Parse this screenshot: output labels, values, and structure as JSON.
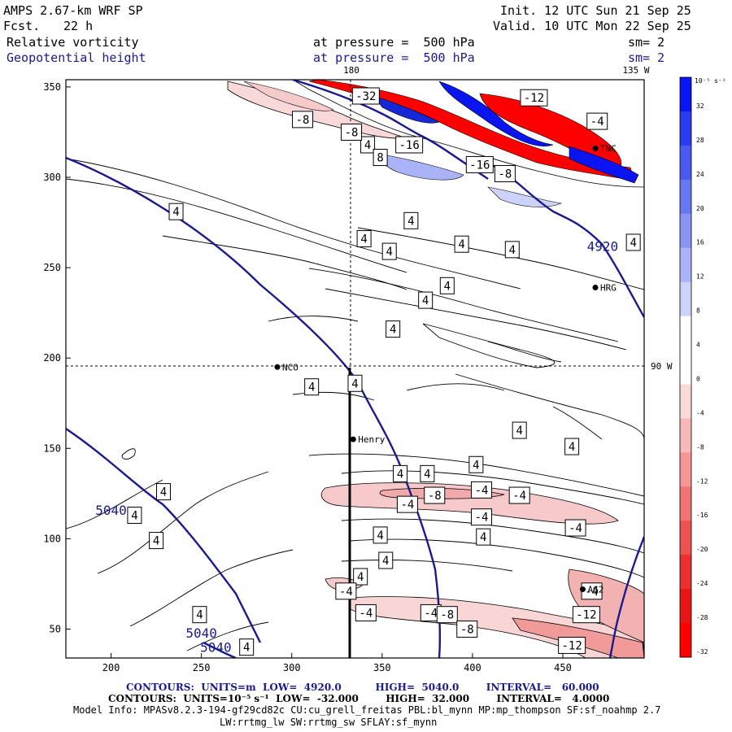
{
  "header": {
    "model": "AMPS 2.67-km WRF SP",
    "fcst_label": "Fcst.",
    "fcst_value": "22 h",
    "init": "Init. 12 UTC Sun 21 Sep 25",
    "valid": "Valid. 10 UTC Mon 22 Sep 25",
    "field1_name": "Relative vorticity",
    "field1_level": "at pressure =  500 hPa",
    "field1_sm": "sm= 2",
    "field2_name": "Geopotential height",
    "field2_level": "at pressure =  500 hPa",
    "field2_sm": "sm= 2"
  },
  "map": {
    "meridian_labels": {
      "m180": "180",
      "m135": "135 W",
      "m90": "90 W"
    },
    "x_ticks": [
      "200",
      "250",
      "300",
      "350",
      "400",
      "450"
    ],
    "y_ticks": [
      "50",
      "100",
      "150",
      "200",
      "250",
      "300",
      "350"
    ],
    "stations": [
      {
        "name": "NCO",
        "x": 292,
        "y": 195
      },
      {
        "name": "Henry",
        "x": 334,
        "y": 155
      },
      {
        "name": "HRG",
        "x": 468,
        "y": 239
      },
      {
        "name": "AG2",
        "x": 461,
        "y": 72
      },
      {
        "name": "TNC",
        "x": 468,
        "y": 316
      }
    ],
    "height_labels": [
      {
        "text": "4920",
        "x": 472,
        "y": 262
      },
      {
        "text": "5040",
        "x": 200,
        "y": 116
      },
      {
        "text": "5040",
        "x": 250,
        "y": 48
      },
      {
        "text": "5040",
        "x": 258,
        "y": 40
      }
    ],
    "vorticity_labels": [
      {
        "text": "-8",
        "x": 306,
        "y": 332
      },
      {
        "text": "-32",
        "x": 341,
        "y": 345
      },
      {
        "text": "4",
        "x": 342,
        "y": 318
      },
      {
        "text": "8",
        "x": 349,
        "y": 311
      },
      {
        "text": "-8",
        "x": 333,
        "y": 325
      },
      {
        "text": "-12",
        "x": 434,
        "y": 344
      },
      {
        "text": "-4",
        "x": 469,
        "y": 331
      },
      {
        "text": "-16",
        "x": 365,
        "y": 318
      },
      {
        "text": "-16",
        "x": 404,
        "y": 307
      },
      {
        "text": "-8",
        "x": 418,
        "y": 302
      },
      {
        "text": "4",
        "x": 236,
        "y": 281
      },
      {
        "text": "4",
        "x": 366,
        "y": 276
      },
      {
        "text": "4",
        "x": 340,
        "y": 266
      },
      {
        "text": "4",
        "x": 354,
        "y": 259
      },
      {
        "text": "4",
        "x": 422,
        "y": 260
      },
      {
        "text": "4",
        "x": 394,
        "y": 263
      },
      {
        "text": "4",
        "x": 489,
        "y": 264
      },
      {
        "text": "4",
        "x": 386,
        "y": 240
      },
      {
        "text": "4",
        "x": 374,
        "y": 232
      },
      {
        "text": "4",
        "x": 356,
        "y": 216
      },
      {
        "text": "4",
        "x": 311,
        "y": 184
      },
      {
        "text": "4",
        "x": 335,
        "y": 186
      },
      {
        "text": "4",
        "x": 426,
        "y": 160
      },
      {
        "text": "4",
        "x": 455,
        "y": 151
      },
      {
        "text": "4",
        "x": 402,
        "y": 141
      },
      {
        "text": "4",
        "x": 375,
        "y": 136
      },
      {
        "text": "4",
        "x": 360,
        "y": 136
      },
      {
        "text": "-4",
        "x": 405,
        "y": 127
      },
      {
        "text": "-4",
        "x": 426,
        "y": 124
      },
      {
        "text": "-8",
        "x": 379,
        "y": 124
      },
      {
        "text": "-4",
        "x": 364,
        "y": 119
      },
      {
        "text": "-4",
        "x": 405,
        "y": 112
      },
      {
        "text": "-4",
        "x": 457,
        "y": 106
      },
      {
        "text": "4",
        "x": 229,
        "y": 126
      },
      {
        "text": "4",
        "x": 213,
        "y": 113
      },
      {
        "text": "4",
        "x": 225,
        "y": 99
      },
      {
        "text": "4",
        "x": 349,
        "y": 102
      },
      {
        "text": "4",
        "x": 406,
        "y": 101
      },
      {
        "text": "4",
        "x": 352,
        "y": 88
      },
      {
        "text": "4",
        "x": 338,
        "y": 79
      },
      {
        "text": "-4",
        "x": 330,
        "y": 71
      },
      {
        "text": "-4",
        "x": 466,
        "y": 71
      },
      {
        "text": "-4",
        "x": 341,
        "y": 59
      },
      {
        "text": "-4",
        "x": 377,
        "y": 59
      },
      {
        "text": "-8",
        "x": 386,
        "y": 58
      },
      {
        "text": "-12",
        "x": 463,
        "y": 58
      },
      {
        "text": "4",
        "x": 249,
        "y": 58
      },
      {
        "text": "-8",
        "x": 397,
        "y": 50
      },
      {
        "text": "4",
        "x": 275,
        "y": 40
      },
      {
        "text": "-12",
        "x": 455,
        "y": 41
      }
    ]
  },
  "colorbar": {
    "unit_label": "10⁻⁵ s⁻¹",
    "levels": [
      "32",
      "28",
      "24",
      "20",
      "16",
      "12",
      "8",
      "4",
      "0",
      "-4",
      "-8",
      "-12",
      "-16",
      "-20",
      "-24",
      "-28",
      "-32"
    ],
    "colors": [
      "#0a14f0",
      "#2b3bf0",
      "#4a5af0",
      "#6a77f2",
      "#8a94f4",
      "#abb3f7",
      "#cdd2fa",
      "#ffffff",
      "#ffffff",
      "#fbdada",
      "#f7b8b8",
      "#f49696",
      "#f07474",
      "#ed5252",
      "#ea3030",
      "#e81515",
      "#ff0000"
    ]
  },
  "footer": {
    "line1": "CONTOURS:  UNITS=m  LOW=  4920.0          HIGH=  5040.0        INTERVAL=   60.000",
    "line2": "CONTOURS:  UNITS=10⁻⁵ s⁻¹  LOW=  -32.000        HIGH=  32.000        INTERVAL=   4.0000",
    "line3": "Model Info: MPASv8.2.3-194-gf29cd82c CU:cu_grell_freitas PBL:bl_mynn MP:mp_thompson SF:sf_noahmp 2.7",
    "line4": "LW:rrtmg_lw SW:rrtmg_sw SFLAY:sf_mynn"
  },
  "colors": {
    "height_contour": "#1a1a8c",
    "positive_vort": "#1428d8",
    "negative_vort": "#ff0000"
  }
}
